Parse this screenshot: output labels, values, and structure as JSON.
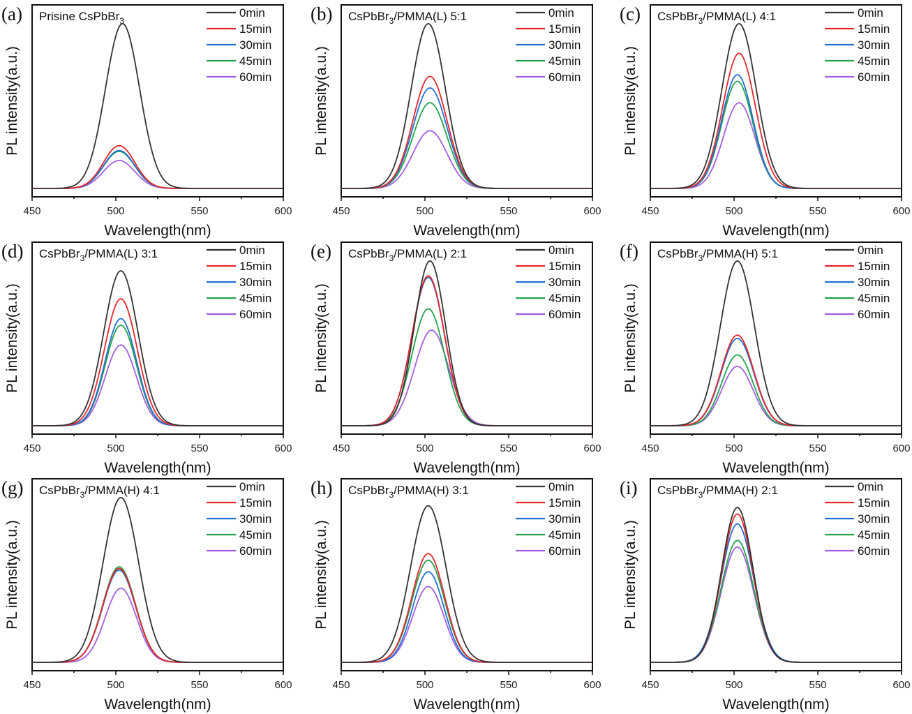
{
  "figure": {
    "xlabel": "Wavelength(nm)",
    "ylabel": "PL intensity(a.u.)",
    "x_ticks": [
      450,
      500,
      550,
      600
    ],
    "x_minor_ticks": [
      475,
      525,
      575
    ]
  },
  "chart_data": [
    {
      "type": "line",
      "panel": "(a)",
      "title": "Prisine CsPbBr",
      "title_sub": "3",
      "title_suffix": "",
      "xlabel": "Wavelength(nm)",
      "ylabel": "PL intensity(a.u.)",
      "xlim": [
        450,
        600
      ],
      "ylim": [
        0,
        1.08
      ],
      "grid": false,
      "legend": "top-right",
      "series": [
        {
          "name": "0min",
          "color": "#333333",
          "peak_nm": 504,
          "peak": 1.0,
          "fwhm_nm": 24
        },
        {
          "name": "15min",
          "color": "#e8262b",
          "peak_nm": 502,
          "peak": 0.26,
          "fwhm_nm": 22
        },
        {
          "name": "30min",
          "color": "#1f6fd1",
          "peak_nm": 502,
          "peak": 0.23,
          "fwhm_nm": 22
        },
        {
          "name": "45min",
          "color": "#23a24d",
          "peak_nm": 502,
          "peak": 0.225,
          "fwhm_nm": 22
        },
        {
          "name": "60min",
          "color": "#a35ee0",
          "peak_nm": 502,
          "peak": 0.17,
          "fwhm_nm": 22
        }
      ]
    },
    {
      "type": "line",
      "panel": "(b)",
      "title": "CsPbBr",
      "title_sub": "3",
      "title_suffix": "/PMMA(L) 5:1",
      "xlabel": "Wavelength(nm)",
      "ylabel": "PL intensity(a.u.)",
      "xlim": [
        450,
        600
      ],
      "ylim": [
        0,
        1.08
      ],
      "grid": false,
      "legend": "top-right",
      "series": [
        {
          "name": "0min",
          "color": "#333333",
          "peak_nm": 502,
          "peak": 1.0,
          "fwhm_nm": 24
        },
        {
          "name": "15min",
          "color": "#e8262b",
          "peak_nm": 503,
          "peak": 0.68,
          "fwhm_nm": 24
        },
        {
          "name": "30min",
          "color": "#1f6fd1",
          "peak_nm": 503,
          "peak": 0.61,
          "fwhm_nm": 24
        },
        {
          "name": "45min",
          "color": "#23a24d",
          "peak_nm": 503,
          "peak": 0.52,
          "fwhm_nm": 24
        },
        {
          "name": "60min",
          "color": "#a35ee0",
          "peak_nm": 503,
          "peak": 0.35,
          "fwhm_nm": 24
        }
      ]
    },
    {
      "type": "line",
      "panel": "(c)",
      "title": "CsPbBr",
      "title_sub": "3",
      "title_suffix": "/PMMA(L) 4:1",
      "xlabel": "Wavelength(nm)",
      "ylabel": "PL intensity(a.u.)",
      "xlim": [
        450,
        600
      ],
      "ylim": [
        0,
        1.08
      ],
      "grid": false,
      "legend": "top-right",
      "series": [
        {
          "name": "0min",
          "color": "#333333",
          "peak_nm": 503,
          "peak": 1.0,
          "fwhm_nm": 24
        },
        {
          "name": "15min",
          "color": "#e8262b",
          "peak_nm": 503,
          "peak": 0.82,
          "fwhm_nm": 23
        },
        {
          "name": "30min",
          "color": "#1f6fd1",
          "peak_nm": 502,
          "peak": 0.69,
          "fwhm_nm": 22
        },
        {
          "name": "45min",
          "color": "#23a24d",
          "peak_nm": 502,
          "peak": 0.65,
          "fwhm_nm": 22
        },
        {
          "name": "60min",
          "color": "#a35ee0",
          "peak_nm": 503,
          "peak": 0.52,
          "fwhm_nm": 22
        }
      ]
    },
    {
      "type": "line",
      "panel": "(d)",
      "title": "CsPbBr",
      "title_sub": "3",
      "title_suffix": "/PMMA(L) 3:1",
      "xlabel": "Wavelength(nm)",
      "ylabel": "PL intensity(a.u.)",
      "xlim": [
        450,
        600
      ],
      "ylim": [
        0,
        1.08
      ],
      "grid": false,
      "legend": "top-right",
      "series": [
        {
          "name": "0min",
          "color": "#333333",
          "peak_nm": 503,
          "peak": 0.94,
          "fwhm_nm": 24
        },
        {
          "name": "15min",
          "color": "#e8262b",
          "peak_nm": 503,
          "peak": 0.77,
          "fwhm_nm": 23
        },
        {
          "name": "30min",
          "color": "#1f6fd1",
          "peak_nm": 503,
          "peak": 0.65,
          "fwhm_nm": 22
        },
        {
          "name": "45min",
          "color": "#23a24d",
          "peak_nm": 503,
          "peak": 0.61,
          "fwhm_nm": 22
        },
        {
          "name": "60min",
          "color": "#a35ee0",
          "peak_nm": 503,
          "peak": 0.49,
          "fwhm_nm": 22
        }
      ]
    },
    {
      "type": "line",
      "panel": "(e)",
      "title": "CsPbBr",
      "title_sub": "3",
      "title_suffix": "/PMMA(L) 2:1",
      "xlabel": "Wavelength(nm)",
      "ylabel": "PL intensity(a.u.)",
      "xlim": [
        450,
        600
      ],
      "ylim": [
        0,
        1.08
      ],
      "grid": false,
      "legend": "top-right",
      "series": [
        {
          "name": "0min",
          "color": "#333333",
          "peak_nm": 503,
          "peak": 1.0,
          "fwhm_nm": 22
        },
        {
          "name": "15min",
          "color": "#e8262b",
          "peak_nm": 502,
          "peak": 0.91,
          "fwhm_nm": 23
        },
        {
          "name": "30min",
          "color": "#1f6fd1",
          "peak_nm": 502,
          "peak": 0.9,
          "fwhm_nm": 23
        },
        {
          "name": "45min",
          "color": "#23a24d",
          "peak_nm": 502,
          "peak": 0.71,
          "fwhm_nm": 23
        },
        {
          "name": "60min",
          "color": "#a35ee0",
          "peak_nm": 504,
          "peak": 0.58,
          "fwhm_nm": 24
        }
      ]
    },
    {
      "type": "line",
      "panel": "(f)",
      "title": "CsPbBr",
      "title_sub": "3",
      "title_suffix": "/PMMA(H) 5:1",
      "xlabel": "Wavelength(nm)",
      "ylabel": "PL intensity(a.u.)",
      "xlim": [
        450,
        600
      ],
      "ylim": [
        0,
        1.08
      ],
      "grid": false,
      "legend": "top-right",
      "series": [
        {
          "name": "0min",
          "color": "#333333",
          "peak_nm": 502,
          "peak": 1.0,
          "fwhm_nm": 24
        },
        {
          "name": "15min",
          "color": "#e8262b",
          "peak_nm": 502,
          "peak": 0.55,
          "fwhm_nm": 23
        },
        {
          "name": "30min",
          "color": "#1f6fd1",
          "peak_nm": 502,
          "peak": 0.53,
          "fwhm_nm": 23
        },
        {
          "name": "45min",
          "color": "#23a24d",
          "peak_nm": 502,
          "peak": 0.43,
          "fwhm_nm": 22
        },
        {
          "name": "60min",
          "color": "#a35ee0",
          "peak_nm": 502,
          "peak": 0.36,
          "fwhm_nm": 22
        }
      ]
    },
    {
      "type": "line",
      "panel": "(g)",
      "title": "CsPbBr",
      "title_sub": "3",
      "title_suffix": "/PMMA(H) 4:1",
      "xlabel": "Wavelength(nm)",
      "ylabel": "PL intensity(a.u.)",
      "xlim": [
        450,
        600
      ],
      "ylim": [
        0,
        1.08
      ],
      "grid": false,
      "legend": "top-right",
      "series": [
        {
          "name": "0min",
          "color": "#333333",
          "peak_nm": 503,
          "peak": 1.0,
          "fwhm_nm": 25
        },
        {
          "name": "15min",
          "color": "#e8262b",
          "peak_nm": 502,
          "peak": 0.57,
          "fwhm_nm": 23
        },
        {
          "name": "30min",
          "color": "#1f6fd1",
          "peak_nm": 502,
          "peak": 0.56,
          "fwhm_nm": 23
        },
        {
          "name": "45min",
          "color": "#23a24d",
          "peak_nm": 502,
          "peak": 0.58,
          "fwhm_nm": 23
        },
        {
          "name": "60min",
          "color": "#a35ee0",
          "peak_nm": 503,
          "peak": 0.45,
          "fwhm_nm": 22
        }
      ]
    },
    {
      "type": "line",
      "panel": "(h)",
      "title": "CsPbBr",
      "title_sub": "3",
      "title_suffix": "/PMMA(H) 3:1",
      "xlabel": "Wavelength(nm)",
      "ylabel": "PL intensity(a.u.)",
      "xlim": [
        450,
        600
      ],
      "ylim": [
        0,
        1.08
      ],
      "grid": false,
      "legend": "top-right",
      "series": [
        {
          "name": "0min",
          "color": "#333333",
          "peak_nm": 502,
          "peak": 0.95,
          "fwhm_nm": 25
        },
        {
          "name": "15min",
          "color": "#e8262b",
          "peak_nm": 502,
          "peak": 0.66,
          "fwhm_nm": 23
        },
        {
          "name": "30min",
          "color": "#1f6fd1",
          "peak_nm": 502,
          "peak": 0.55,
          "fwhm_nm": 22
        },
        {
          "name": "45min",
          "color": "#23a24d",
          "peak_nm": 502,
          "peak": 0.62,
          "fwhm_nm": 23
        },
        {
          "name": "60min",
          "color": "#a35ee0",
          "peak_nm": 502,
          "peak": 0.46,
          "fwhm_nm": 22
        }
      ]
    },
    {
      "type": "line",
      "panel": "(i)",
      "title": "CsPbBr",
      "title_sub": "3",
      "title_suffix": "/PMMA(H) 2:1",
      "xlabel": "Wavelength(nm)",
      "ylabel": "PL intensity(a.u.)",
      "xlim": [
        450,
        600
      ],
      "ylim": [
        0,
        1.08
      ],
      "grid": false,
      "legend": "top-right",
      "series": [
        {
          "name": "0min",
          "color": "#333333",
          "peak_nm": 502,
          "peak": 0.94,
          "fwhm_nm": 22
        },
        {
          "name": "15min",
          "color": "#e8262b",
          "peak_nm": 502,
          "peak": 0.9,
          "fwhm_nm": 22
        },
        {
          "name": "30min",
          "color": "#1f6fd1",
          "peak_nm": 502,
          "peak": 0.84,
          "fwhm_nm": 23
        },
        {
          "name": "45min",
          "color": "#23a24d",
          "peak_nm": 502,
          "peak": 0.74,
          "fwhm_nm": 23
        },
        {
          "name": "60min",
          "color": "#a35ee0",
          "peak_nm": 502,
          "peak": 0.7,
          "fwhm_nm": 23
        }
      ]
    }
  ]
}
